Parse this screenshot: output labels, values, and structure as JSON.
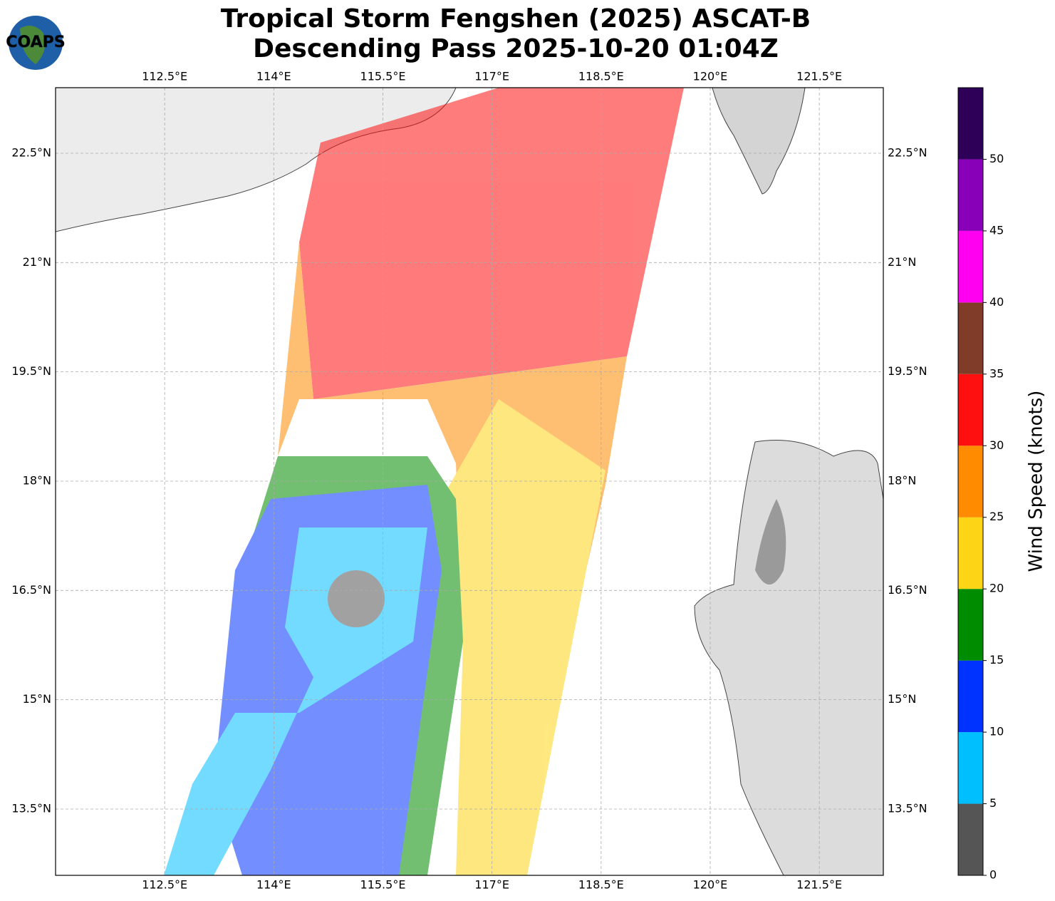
{
  "header": {
    "title": [
      "Tropical Storm Fengshen (2025) ASCAT-B",
      "Descending Pass 2025-10-20 01:04Z"
    ],
    "logo": "COAPS"
  },
  "map": {
    "xlim": [
      111.0,
      122.38
    ],
    "ylim": [
      12.59,
      23.4
    ],
    "xticks": [
      {
        "value": 112.5,
        "label": "112.5°E"
      },
      {
        "value": 114,
        "label": "114°E"
      },
      {
        "value": 115.5,
        "label": "115.5°E"
      },
      {
        "value": 117,
        "label": "117°E"
      },
      {
        "value": 118.5,
        "label": "118.5°E"
      },
      {
        "value": 120,
        "label": "120°E"
      },
      {
        "value": 121.5,
        "label": "121.5°E"
      }
    ],
    "yticks": [
      {
        "value": 13.5,
        "label": "13.5°N"
      },
      {
        "value": 15,
        "label": "15°N"
      },
      {
        "value": 16.5,
        "label": "16.5°N"
      },
      {
        "value": 18,
        "label": "18°N"
      },
      {
        "value": 19.5,
        "label": "19.5°N"
      },
      {
        "value": 21,
        "label": "21°N"
      },
      {
        "value": 22.5,
        "label": "22.5°N"
      }
    ],
    "grid": true
  },
  "colorbar": {
    "label": "Wind Speed (knots)",
    "range": [
      0,
      55
    ],
    "ticks": [
      0,
      5,
      10,
      15,
      20,
      25,
      30,
      35,
      40,
      45,
      50
    ],
    "bounds": [
      0,
      5,
      10,
      15,
      20,
      25,
      30,
      35,
      40,
      45,
      50,
      55
    ],
    "colors": [
      "#555555",
      "#00bfff",
      "#0033ff",
      "#008c00",
      "#fdd516",
      "#ff8c00",
      "#ff1010",
      "#803c28",
      "#ff00f0",
      "#8800b8",
      "#2e0058"
    ]
  }
}
